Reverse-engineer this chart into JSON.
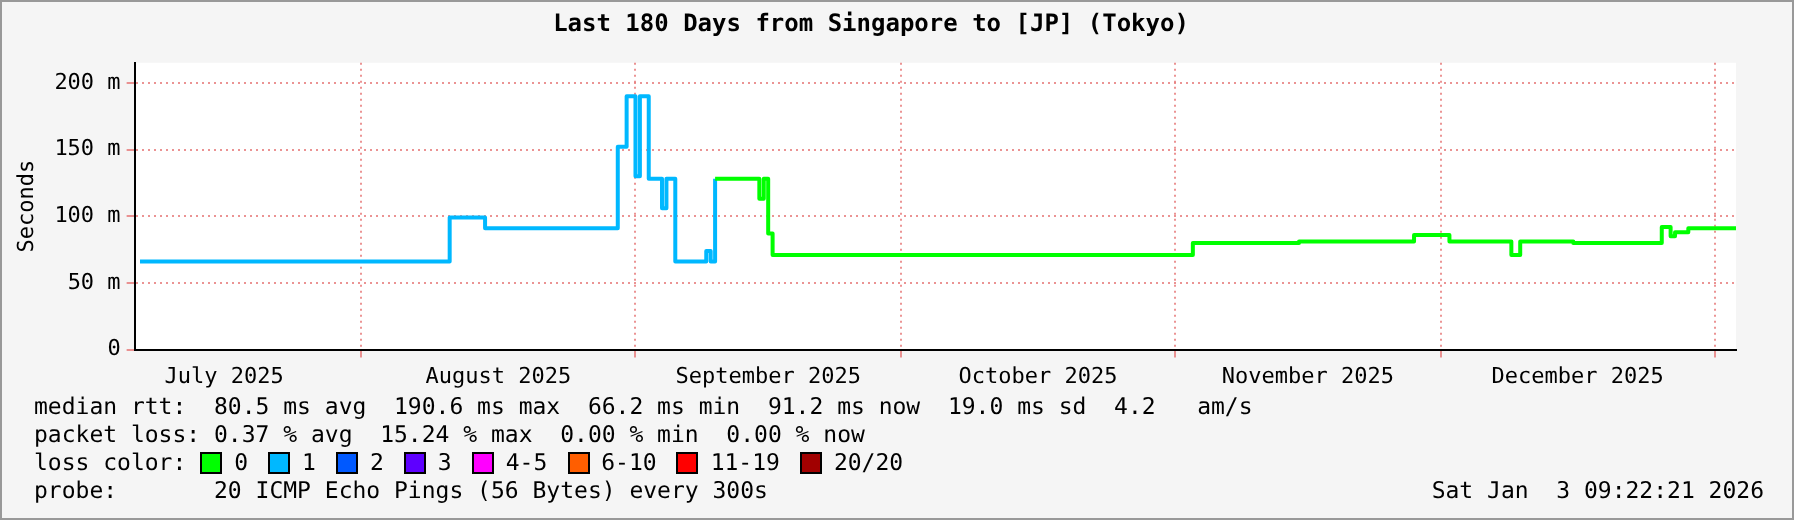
{
  "chart_data": {
    "type": "step",
    "title": "Last 180 Days from Singapore to [JP] (Tokyo)",
    "ylabel": "Seconds",
    "xlim": [
      "2025-07-06T09:22",
      "2026-01-03T09:22"
    ],
    "xticks": [
      {
        "value": "2025-07-16T12:00",
        "label": "July 2025"
      },
      {
        "value": "2025-08-01",
        "label": null
      },
      {
        "value": "2025-08-16T12:00",
        "label": "August 2025"
      },
      {
        "value": "2025-09-01",
        "label": null
      },
      {
        "value": "2025-09-16",
        "label": "September 2025"
      },
      {
        "value": "2025-10-01",
        "label": null
      },
      {
        "value": "2025-10-16T12:00",
        "label": "October 2025"
      },
      {
        "value": "2025-11-01",
        "label": null
      },
      {
        "value": "2025-11-16",
        "label": "November 2025"
      },
      {
        "value": "2025-12-01",
        "label": null
      },
      {
        "value": "2025-12-16T12:00",
        "label": "December 2025"
      },
      {
        "value": "2026-01-01",
        "label": null
      }
    ],
    "ylim": [
      0,
      215
    ],
    "yticks": [
      0,
      {
        "value": 50,
        "label": "50 m"
      },
      {
        "value": 100,
        "label": "100 m"
      },
      {
        "value": 150,
        "label": "150 m"
      },
      {
        "value": 200,
        "label": "200 m"
      }
    ],
    "grid": true,
    "legend": "bottom",
    "legend_title": "loss color:",
    "series": [
      {
        "name": "0",
        "color": "#00ff00",
        "x": [
          "2025-09-10",
          "2025-09-15",
          "2025-09-15T12:00",
          "2025-09-16",
          "2025-09-16T12:00",
          "2025-11-03",
          "2025-11-15",
          "2025-11-28",
          "2025-12-02",
          "2025-12-09",
          "2025-12-10",
          "2025-12-16",
          "2025-12-26",
          "2025-12-27",
          "2025-12-27T12:00",
          "2025-12-29",
          "2026-01-03T09:22"
        ],
        "values": [
          128,
          113,
          128,
          87,
          71,
          80,
          81,
          86,
          81,
          71,
          81,
          80,
          92,
          85,
          88,
          91,
          91
        ]
      },
      {
        "name": "1",
        "color": "#00b8ff",
        "x": [
          "2025-07-07",
          "2025-08-11",
          "2025-08-15",
          "2025-08-30",
          "2025-08-31",
          "2025-09-01",
          "2025-09-01T12:00",
          "2025-09-02T12:00",
          "2025-09-04",
          "2025-09-04T12:00",
          "2025-09-05T12:00",
          "2025-09-09",
          "2025-09-09T12:00",
          "2025-09-10"
        ],
        "values": [
          66,
          99,
          91,
          152,
          190,
          130,
          190,
          128,
          106,
          128,
          66,
          74,
          66,
          128
        ]
      },
      {
        "name": "2",
        "color": "#0059ff"
      },
      {
        "name": "3",
        "color": "#5e00ff"
      },
      {
        "name": "4-5",
        "color": "#ff00ff"
      },
      {
        "name": "6-10",
        "color": "#ff5e00"
      },
      {
        "name": "11-19",
        "color": "#ff0000"
      },
      {
        "name": "20/20",
        "color": "#a10000"
      }
    ],
    "annotations": [
      "median rtt:  80.5 ms avg  190.6 ms max  66.2 ms min  91.2 ms now  19.0 ms sd  4.2   am/s",
      "packet loss: 0.37 % avg  15.24 % max  0.00 % min  0.00 % now",
      "probe:       20 ICMP Echo Pings (56 Bytes) every 300s",
      "Sat Jan  3 09:22:21 2026"
    ]
  }
}
